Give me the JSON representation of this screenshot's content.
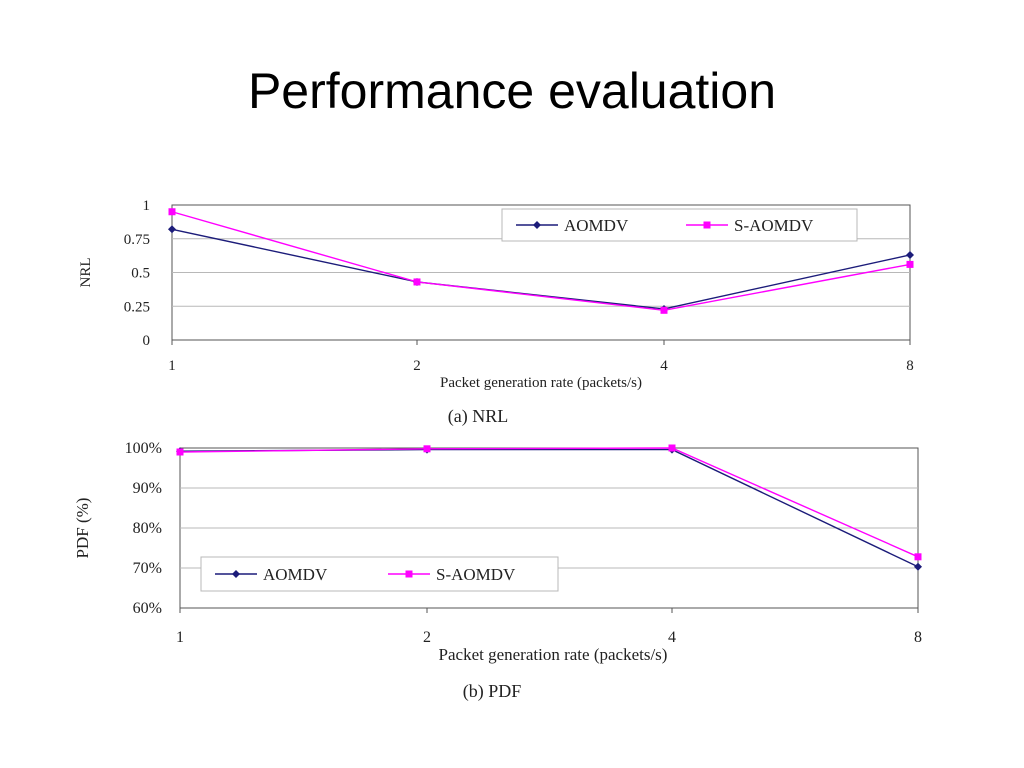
{
  "slide": {
    "title": "Performance  evaluation"
  },
  "colors": {
    "aomdv": "#1c1c7a",
    "s_aomdv": "#ff00ff",
    "grid": "#b8b8b8",
    "axis": "#555555",
    "text": "#222222"
  },
  "chart_data": [
    {
      "id": "nrl",
      "type": "line",
      "title": "",
      "caption": "(a) NRL",
      "xlabel": "Packet generation rate (packets/s)",
      "ylabel": "NRL",
      "categories": [
        "1",
        "2",
        "4",
        "8"
      ],
      "yticks": [
        "0",
        "0.25",
        "0.5",
        "0.75",
        "1"
      ],
      "ylim": [
        0,
        1
      ],
      "grid": true,
      "legend_position": "top-right",
      "series": [
        {
          "name": "AOMDV",
          "values": [
            0.82,
            0.43,
            0.23,
            0.63
          ],
          "color": "#1c1c7a",
          "marker": "diamond"
        },
        {
          "name": "S-AOMDV",
          "values": [
            0.95,
            0.43,
            0.22,
            0.56
          ],
          "color": "#ff00ff",
          "marker": "square"
        }
      ]
    },
    {
      "id": "pdf",
      "type": "line",
      "title": "",
      "caption": "(b) PDF",
      "xlabel": "Packet generation rate (packets/s)",
      "ylabel": "PDF (%)",
      "categories": [
        "1",
        "2",
        "4",
        "8"
      ],
      "yticks": [
        "60%",
        "70%",
        "80%",
        "90%",
        "100%"
      ],
      "ylim": [
        60,
        100
      ],
      "grid": true,
      "legend_position": "bottom-left",
      "series": [
        {
          "name": "AOMDV",
          "values": [
            99.2,
            99.6,
            99.6,
            70.3
          ],
          "color": "#1c1c7a",
          "marker": "diamond"
        },
        {
          "name": "S-AOMDV",
          "values": [
            99.0,
            99.8,
            100.0,
            72.8
          ],
          "color": "#ff00ff",
          "marker": "square"
        }
      ]
    }
  ]
}
